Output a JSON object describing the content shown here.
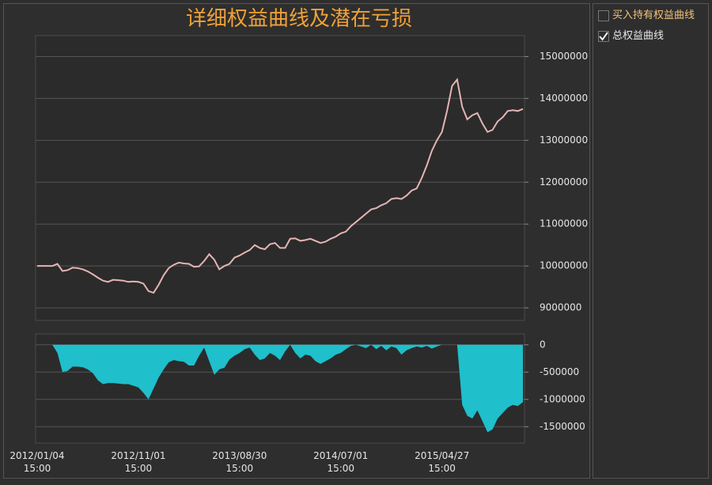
{
  "chart_data": [
    {
      "type": "line",
      "title": "详细权益曲线及潜在亏损",
      "color": "#e6b4b4",
      "values": [
        10000000,
        10000000,
        10000000,
        10000000,
        10050000,
        9880000,
        9900000,
        9960000,
        9950000,
        9920000,
        9870000,
        9800000,
        9720000,
        9650000,
        9620000,
        9670000,
        9660000,
        9650000,
        9620000,
        9630000,
        9620000,
        9580000,
        9400000,
        9360000,
        9550000,
        9780000,
        9950000,
        10030000,
        10080000,
        10060000,
        10050000,
        9980000,
        9990000,
        10120000,
        10280000,
        10150000,
        9920000,
        10000000,
        10050000,
        10200000,
        10250000,
        10320000,
        10380000,
        10500000,
        10430000,
        10400000,
        10520000,
        10550000,
        10430000,
        10430000,
        10650000,
        10660000,
        10600000,
        10620000,
        10650000,
        10600000,
        10550000,
        10580000,
        10650000,
        10700000,
        10780000,
        10820000,
        10950000,
        11050000,
        11150000,
        11250000,
        11350000,
        11380000,
        11450000,
        11500000,
        11600000,
        11620000,
        11600000,
        11680000,
        11800000,
        11850000,
        12100000,
        12400000,
        12750000,
        13000000,
        13200000,
        13700000,
        14300000,
        14450000,
        13800000,
        13500000,
        13600000,
        13650000,
        13400000,
        13200000,
        13250000,
        13450000,
        13550000,
        13700000,
        13720000,
        13700000,
        13750000
      ],
      "ylim": [
        8700000,
        15500000
      ],
      "yticks": [
        9000000,
        10000000,
        11000000,
        12000000,
        13000000,
        14000000,
        15000000
      ],
      "grid": true
    },
    {
      "type": "area",
      "color": "#1fbfcb",
      "categories": [
        "2012/01/04 15:00",
        null,
        null,
        null,
        null,
        null,
        null,
        null,
        null,
        null,
        null,
        null,
        null,
        null,
        null,
        null,
        null,
        null,
        null,
        null,
        "2012/11/01 15:00",
        null,
        null,
        null,
        null,
        null,
        null,
        null,
        null,
        null,
        null,
        null,
        null,
        null,
        null,
        null,
        null,
        null,
        null,
        null,
        "2013/08/30 15:00",
        null,
        null,
        null,
        null,
        null,
        null,
        null,
        null,
        null,
        null,
        null,
        null,
        null,
        null,
        null,
        null,
        null,
        null,
        null,
        "2014/07/01 15:00",
        null,
        null,
        null,
        null,
        null,
        null,
        null,
        null,
        null,
        null,
        null,
        null,
        null,
        null,
        null,
        null,
        null,
        null,
        null,
        "2015/04/27 15:00",
        null,
        null,
        null,
        null,
        null,
        null,
        null,
        null,
        null,
        null,
        null,
        null,
        null,
        null,
        null,
        null
      ],
      "values": [
        0,
        0,
        0,
        0,
        -150000,
        -500000,
        -480000,
        -400000,
        -400000,
        -410000,
        -450000,
        -520000,
        -650000,
        -720000,
        -700000,
        -700000,
        -710000,
        -720000,
        -720000,
        -750000,
        -780000,
        -880000,
        -1000000,
        -800000,
        -600000,
        -450000,
        -320000,
        -280000,
        -300000,
        -310000,
        -380000,
        -380000,
        -200000,
        -50000,
        -300000,
        -550000,
        -450000,
        -420000,
        -270000,
        -200000,
        -150000,
        -80000,
        -50000,
        -180000,
        -280000,
        -250000,
        -150000,
        -200000,
        -280000,
        -120000,
        0,
        -150000,
        -250000,
        -180000,
        -200000,
        -300000,
        -350000,
        -300000,
        -250000,
        -180000,
        -150000,
        -80000,
        -20000,
        0,
        -30000,
        -60000,
        0,
        -80000,
        -20000,
        -100000,
        -30000,
        -60000,
        -180000,
        -100000,
        -60000,
        -30000,
        -50000,
        -20000,
        -70000,
        -30000,
        0,
        0,
        0,
        0,
        -1100000,
        -1300000,
        -1350000,
        -1200000,
        -1400000,
        -1600000,
        -1550000,
        -1350000,
        -1250000,
        -1150000,
        -1100000,
        -1120000,
        -1050000
      ],
      "ylim": [
        -1800000,
        200000
      ],
      "yticks": [
        0,
        -500000,
        -1000000,
        -1500000
      ],
      "grid": true
    }
  ],
  "legend": [
    {
      "label": "买入持有权益曲线",
      "checked": false,
      "color": "#f2c27a"
    },
    {
      "label": "总权益曲线",
      "checked": true,
      "color": "#e6e6e6"
    }
  ]
}
